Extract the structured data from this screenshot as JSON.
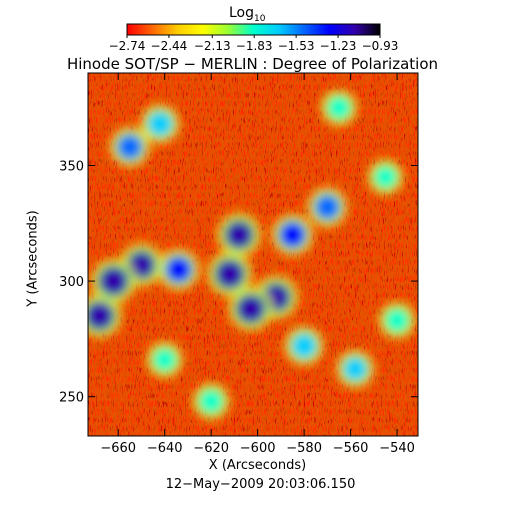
{
  "chart_data": {
    "type": "heatmap",
    "title": "Hinode SOT/SP − MERLIN : Degree of Polarization",
    "subtitle": "12−May−2009 20:03:06.150",
    "xlabel": "X (Arcseconds)",
    "ylabel": "Y (Arcseconds)",
    "xlim": [
      -673,
      -531
    ],
    "ylim": [
      233,
      390
    ],
    "x_ticks": [
      -660,
      -640,
      -620,
      -600,
      -580,
      -560,
      -540
    ],
    "x_tick_labels": [
      "−660",
      "−640",
      "−620",
      "−600",
      "−580",
      "−560",
      "−540"
    ],
    "y_ticks": [
      250,
      300,
      350
    ],
    "y_tick_labels": [
      "250",
      "300",
      "350"
    ],
    "colorbar": {
      "title_main": "Log",
      "title_sub": "10",
      "range": [
        -2.74,
        -0.93
      ],
      "tick_values": [
        -2.74,
        -2.44,
        -2.13,
        -1.83,
        -1.53,
        -1.23,
        -0.93
      ],
      "tick_labels": [
        "−2.74",
        "−2.44",
        "−2.13",
        "−1.83",
        "−1.53",
        "−1.23",
        "−0.93"
      ],
      "colors": [
        "#ff0000",
        "#ff6600",
        "#ffcc00",
        "#ffff00",
        "#99ff33",
        "#00ffcc",
        "#00ccff",
        "#0066ff",
        "#0000ff",
        "#3300aa",
        "#000000"
      ]
    },
    "regions": [
      {
        "x": -612,
        "y": 303,
        "value": -1.05
      },
      {
        "x": -608,
        "y": 320,
        "value": -1.15
      },
      {
        "x": -603,
        "y": 288,
        "value": -1.1
      },
      {
        "x": -592,
        "y": 293,
        "value": -1.15
      },
      {
        "x": -662,
        "y": 300,
        "value": -1.05
      },
      {
        "x": -668,
        "y": 285,
        "value": -1.1
      },
      {
        "x": -650,
        "y": 307,
        "value": -1.2
      },
      {
        "x": -634,
        "y": 305,
        "value": -1.35
      },
      {
        "x": -585,
        "y": 320,
        "value": -1.35
      },
      {
        "x": -570,
        "y": 332,
        "value": -1.5
      },
      {
        "x": -655,
        "y": 358,
        "value": -1.5
      },
      {
        "x": -642,
        "y": 368,
        "value": -1.6
      },
      {
        "x": -580,
        "y": 272,
        "value": -1.6
      },
      {
        "x": -558,
        "y": 262,
        "value": -1.7
      },
      {
        "x": -540,
        "y": 283,
        "value": -1.8
      },
      {
        "x": -565,
        "y": 375,
        "value": -1.85
      },
      {
        "x": -620,
        "y": 248,
        "value": -1.8
      },
      {
        "x": -640,
        "y": 266,
        "value": -1.85
      },
      {
        "x": -545,
        "y": 345,
        "value": -1.9
      }
    ]
  }
}
